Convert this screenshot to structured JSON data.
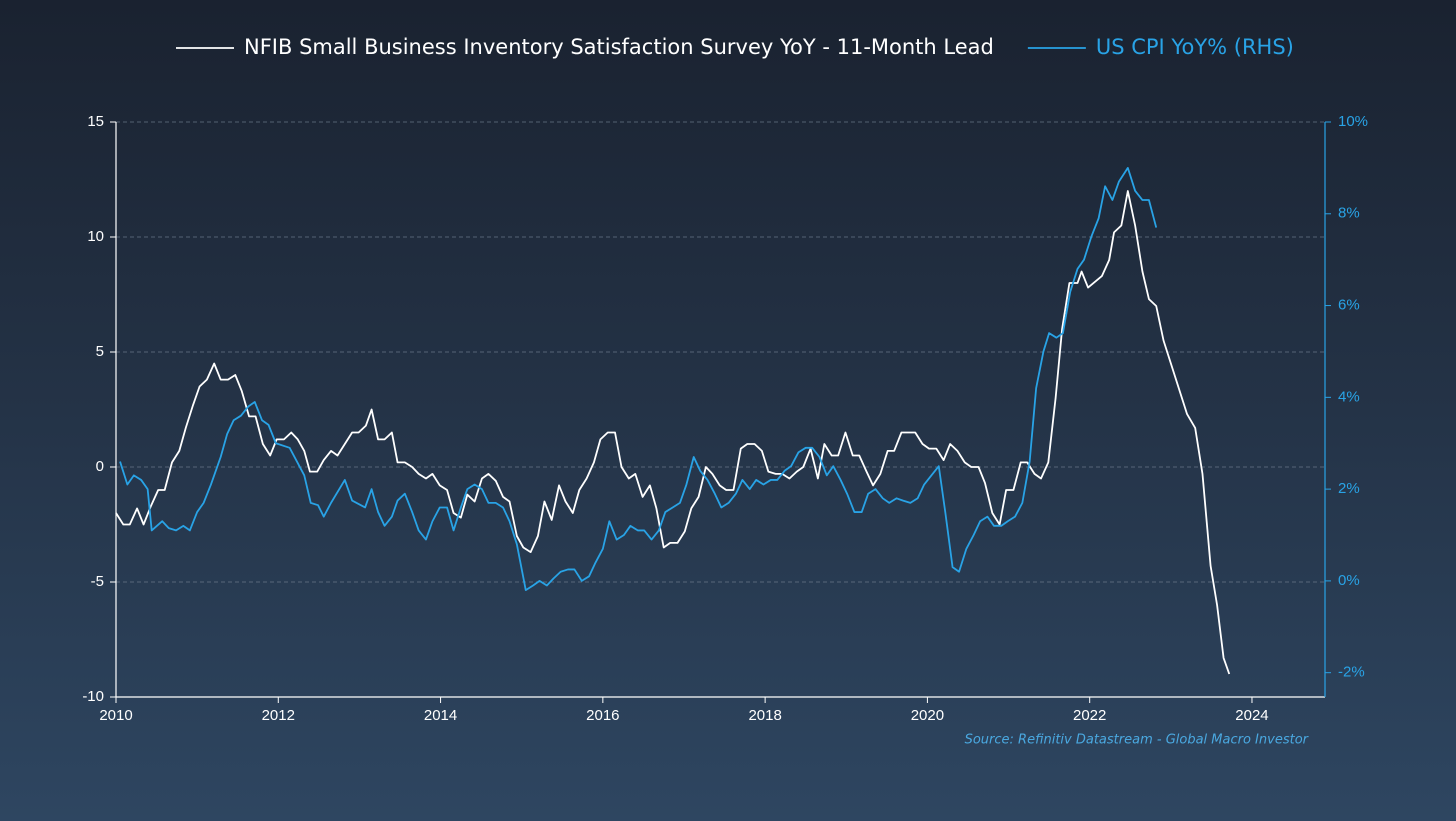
{
  "chart_data": {
    "type": "line",
    "legend": "top",
    "grid": true,
    "source": "Source: Refinitiv Datastream - Global Macro Investor",
    "xlim": [
      2010,
      2024.9
    ],
    "xticks": [
      2010,
      2012,
      2014,
      2016,
      2018,
      2020,
      2022,
      2024
    ],
    "ylim": [
      -10,
      15
    ],
    "yticks": [
      -10,
      -5,
      0,
      5,
      10,
      15
    ],
    "y2lim": [
      -2.53,
      10
    ],
    "y2ticks": [
      {
        "value": -2,
        "label": "-2%"
      },
      {
        "value": 0,
        "label": "0%"
      },
      {
        "value": 2,
        "label": "2%"
      },
      {
        "value": 4,
        "label": "4%"
      },
      {
        "value": 6,
        "label": "6%"
      },
      {
        "value": 8,
        "label": "8%"
      },
      {
        "value": 10,
        "label": "10%"
      }
    ],
    "y2color": "#29a3e6",
    "series": [
      {
        "name": "NFIB Small Business Inventory Satisfaction Survey YoY - 11-Month Lead",
        "color": "#ffffff",
        "x": [
          2010.0,
          2010.09,
          2010.17,
          2010.26,
          2010.34,
          2010.43,
          2010.52,
          2010.6,
          2010.69,
          2010.78,
          2010.86,
          2010.95,
          2011.03,
          2011.12,
          2011.21,
          2011.29,
          2011.38,
          2011.47,
          2011.55,
          2011.64,
          2011.72,
          2011.81,
          2011.9,
          2011.98,
          2012.07,
          2012.16,
          2012.24,
          2012.32,
          2012.39,
          2012.48,
          2012.56,
          2012.65,
          2012.73,
          2012.82,
          2012.91,
          2012.99,
          2013.08,
          2013.15,
          2013.23,
          2013.31,
          2013.4,
          2013.47,
          2013.56,
          2013.65,
          2013.73,
          2013.82,
          2013.9,
          2013.99,
          2014.08,
          2014.16,
          2014.25,
          2014.33,
          2014.42,
          2014.51,
          2014.59,
          2014.68,
          2014.77,
          2014.85,
          2014.94,
          2015.02,
          2015.11,
          2015.2,
          2015.28,
          2015.37,
          2015.46,
          2015.54,
          2015.63,
          2015.71,
          2015.8,
          2015.89,
          2015.97,
          2016.06,
          2016.15,
          2016.23,
          2016.32,
          2016.4,
          2016.49,
          2016.58,
          2016.66,
          2016.75,
          2016.83,
          2016.92,
          2017.01,
          2017.09,
          2017.18,
          2017.27,
          2017.35,
          2017.44,
          2017.52,
          2017.61,
          2017.7,
          2017.78,
          2017.87,
          2017.96,
          2018.04,
          2018.13,
          2018.21,
          2018.3,
          2018.39,
          2018.47,
          2018.56,
          2018.65,
          2018.73,
          2018.82,
          2018.9,
          2018.99,
          2019.08,
          2019.16,
          2019.25,
          2019.33,
          2019.42,
          2019.51,
          2019.59,
          2019.68,
          2019.77,
          2019.85,
          2019.94,
          2020.02,
          2020.11,
          2020.2,
          2020.28,
          2020.37,
          2020.46,
          2020.54,
          2020.63,
          2020.71,
          2020.8,
          2020.89,
          2020.97,
          2021.06,
          2021.15,
          2021.23,
          2021.32,
          2021.4,
          2021.49,
          2021.58,
          2021.66,
          2021.75,
          2021.85,
          2021.9,
          2021.98,
          2022.15,
          2022.24,
          2022.3,
          2022.39,
          2022.47,
          2022.56,
          2022.65,
          2022.73,
          2022.82,
          2022.91,
          2023.2,
          2023.3,
          2023.39,
          2023.49,
          2023.57,
          2023.65,
          2023.72
        ],
        "values": [
          -2,
          -2.5,
          -2.5,
          -1.8,
          -2.5,
          -1.7,
          -1,
          -1,
          0.2,
          0.7,
          1.7,
          2.7,
          3.5,
          3.8,
          4.5,
          3.8,
          3.8,
          4,
          3.3,
          2.2,
          2.2,
          1,
          0.5,
          1.2,
          1.2,
          1.5,
          1.2,
          0.7,
          -0.2,
          -0.2,
          0.3,
          0.7,
          0.5,
          1,
          1.5,
          1.5,
          1.8,
          2.5,
          1.2,
          1.2,
          1.5,
          0.2,
          0.2,
          0,
          -0.3,
          -0.5,
          -0.3,
          -0.8,
          -1,
          -2,
          -2.2,
          -1.2,
          -1.5,
          -0.5,
          -0.3,
          -0.6,
          -1.3,
          -1.5,
          -3,
          -3.5,
          -3.7,
          -3,
          -1.5,
          -2.3,
          -0.8,
          -1.5,
          -2,
          -1,
          -0.5,
          0.2,
          1.2,
          1.5,
          1.5,
          0,
          -0.5,
          -0.3,
          -1.3,
          -0.8,
          -1.8,
          -3.5,
          -3.3,
          -3.3,
          -2.8,
          -1.8,
          -1.3,
          0,
          -0.3,
          -0.8,
          -1,
          -1,
          0.8,
          1,
          1,
          0.7,
          -0.2,
          -0.3,
          -0.3,
          -0.5,
          -0.2,
          0,
          0.8,
          -0.5,
          1,
          0.5,
          0.5,
          1.5,
          0.5,
          0.5,
          -0.2,
          -0.8,
          -0.3,
          0.7,
          0.7,
          1.5,
          1.5,
          1.5,
          1,
          0.8,
          0.8,
          0.3,
          1,
          0.7,
          0.2,
          0,
          0,
          -0.7,
          -2,
          -2.5,
          -1,
          -1,
          0.2,
          0.2,
          -0.3,
          -0.5,
          0.2,
          3,
          6,
          8,
          8,
          8.5,
          7.8,
          8.3,
          9,
          10.2,
          10.5,
          12,
          10.5,
          8.5,
          7.3,
          7,
          5.5,
          2.3,
          1.7,
          -0.3,
          -4.3,
          -6,
          -8.3,
          -9
        ]
      },
      {
        "name": "US CPI YoY% (RHS)",
        "color": "#29a3e6",
        "axis": "y2",
        "x": [
          2010.05,
          2010.14,
          2010.22,
          2010.31,
          2010.39,
          2010.44,
          2010.57,
          2010.65,
          2010.74,
          2010.83,
          2010.91,
          2011.0,
          2011.08,
          2011.17,
          2011.29,
          2011.37,
          2011.45,
          2011.54,
          2011.63,
          2011.71,
          2011.8,
          2011.88,
          2011.97,
          2012.14,
          2012.32,
          2012.4,
          2012.49,
          2012.56,
          2012.65,
          2012.82,
          2012.91,
          2013.07,
          2013.15,
          2013.23,
          2013.31,
          2013.4,
          2013.47,
          2013.56,
          2013.65,
          2013.73,
          2013.82,
          2013.9,
          2013.99,
          2014.08,
          2014.16,
          2014.25,
          2014.33,
          2014.42,
          2014.51,
          2014.59,
          2014.68,
          2014.77,
          2014.85,
          2014.94,
          2015.05,
          2015.14,
          2015.22,
          2015.31,
          2015.39,
          2015.48,
          2015.57,
          2015.65,
          2015.74,
          2015.83,
          2015.91,
          2016.0,
          2016.08,
          2016.17,
          2016.26,
          2016.34,
          2016.43,
          2016.51,
          2016.6,
          2016.69,
          2016.77,
          2016.86,
          2016.95,
          2017.03,
          2017.12,
          2017.2,
          2017.29,
          2017.38,
          2017.46,
          2017.55,
          2017.64,
          2017.72,
          2017.81,
          2017.89,
          2017.98,
          2018.07,
          2018.15,
          2018.24,
          2018.32,
          2018.41,
          2018.5,
          2018.58,
          2018.67,
          2018.76,
          2018.84,
          2018.93,
          2019.01,
          2019.1,
          2019.19,
          2019.27,
          2019.36,
          2019.45,
          2019.53,
          2019.62,
          2019.7,
          2019.79,
          2019.88,
          2019.96,
          2020.05,
          2020.14,
          2020.22,
          2020.31,
          2020.39,
          2020.48,
          2020.57,
          2020.65,
          2020.74,
          2020.82,
          2020.91,
          2020.99,
          2021.08,
          2021.17,
          2021.26,
          2021.34,
          2021.43,
          2021.5,
          2021.59,
          2021.67,
          2021.76,
          2021.85,
          2021.93,
          2022.02,
          2022.11,
          2022.19,
          2022.28,
          2022.36,
          2022.47,
          2022.56,
          2022.65,
          2022.73,
          2022.82
        ],
        "values": [
          2.6,
          2.1,
          2.3,
          2.2,
          2,
          1.1,
          1.3,
          1.15,
          1.1,
          1.2,
          1.1,
          1.5,
          1.7,
          2.1,
          2.7,
          3.2,
          3.5,
          3.6,
          3.8,
          3.9,
          3.5,
          3.4,
          3,
          2.9,
          2.3,
          1.7,
          1.65,
          1.4,
          1.7,
          2.2,
          1.75,
          1.6,
          2,
          1.5,
          1.2,
          1.4,
          1.75,
          1.9,
          1.5,
          1.1,
          0.9,
          1.3,
          1.6,
          1.6,
          1.1,
          1.6,
          2,
          2.1,
          2,
          1.7,
          1.7,
          1.6,
          1.3,
          0.8,
          -0.2,
          -0.1,
          0,
          -0.1,
          0.05,
          0.2,
          0.25,
          0.25,
          0,
          0.1,
          0.4,
          0.7,
          1.3,
          0.9,
          1,
          1.2,
          1.1,
          1.1,
          0.9,
          1.1,
          1.5,
          1.6,
          1.7,
          2.1,
          2.7,
          2.4,
          2.2,
          1.9,
          1.6,
          1.7,
          1.9,
          2.2,
          2,
          2.2,
          2.1,
          2.2,
          2.2,
          2.4,
          2.5,
          2.8,
          2.9,
          2.9,
          2.7,
          2.3,
          2.5,
          2.2,
          1.9,
          1.5,
          1.5,
          1.9,
          2,
          1.8,
          1.7,
          1.8,
          1.75,
          1.7,
          1.8,
          2.1,
          2.3,
          2.5,
          1.5,
          0.3,
          0.2,
          0.7,
          1,
          1.3,
          1.4,
          1.2,
          1.2,
          1.3,
          1.4,
          1.7,
          2.6,
          4.2,
          5,
          5.4,
          5.3,
          5.4,
          6.3,
          6.8,
          7,
          7.5,
          7.9,
          8.6,
          8.3,
          8.7,
          9,
          8.5,
          8.3,
          8.3,
          7.7
        ]
      }
    ]
  }
}
